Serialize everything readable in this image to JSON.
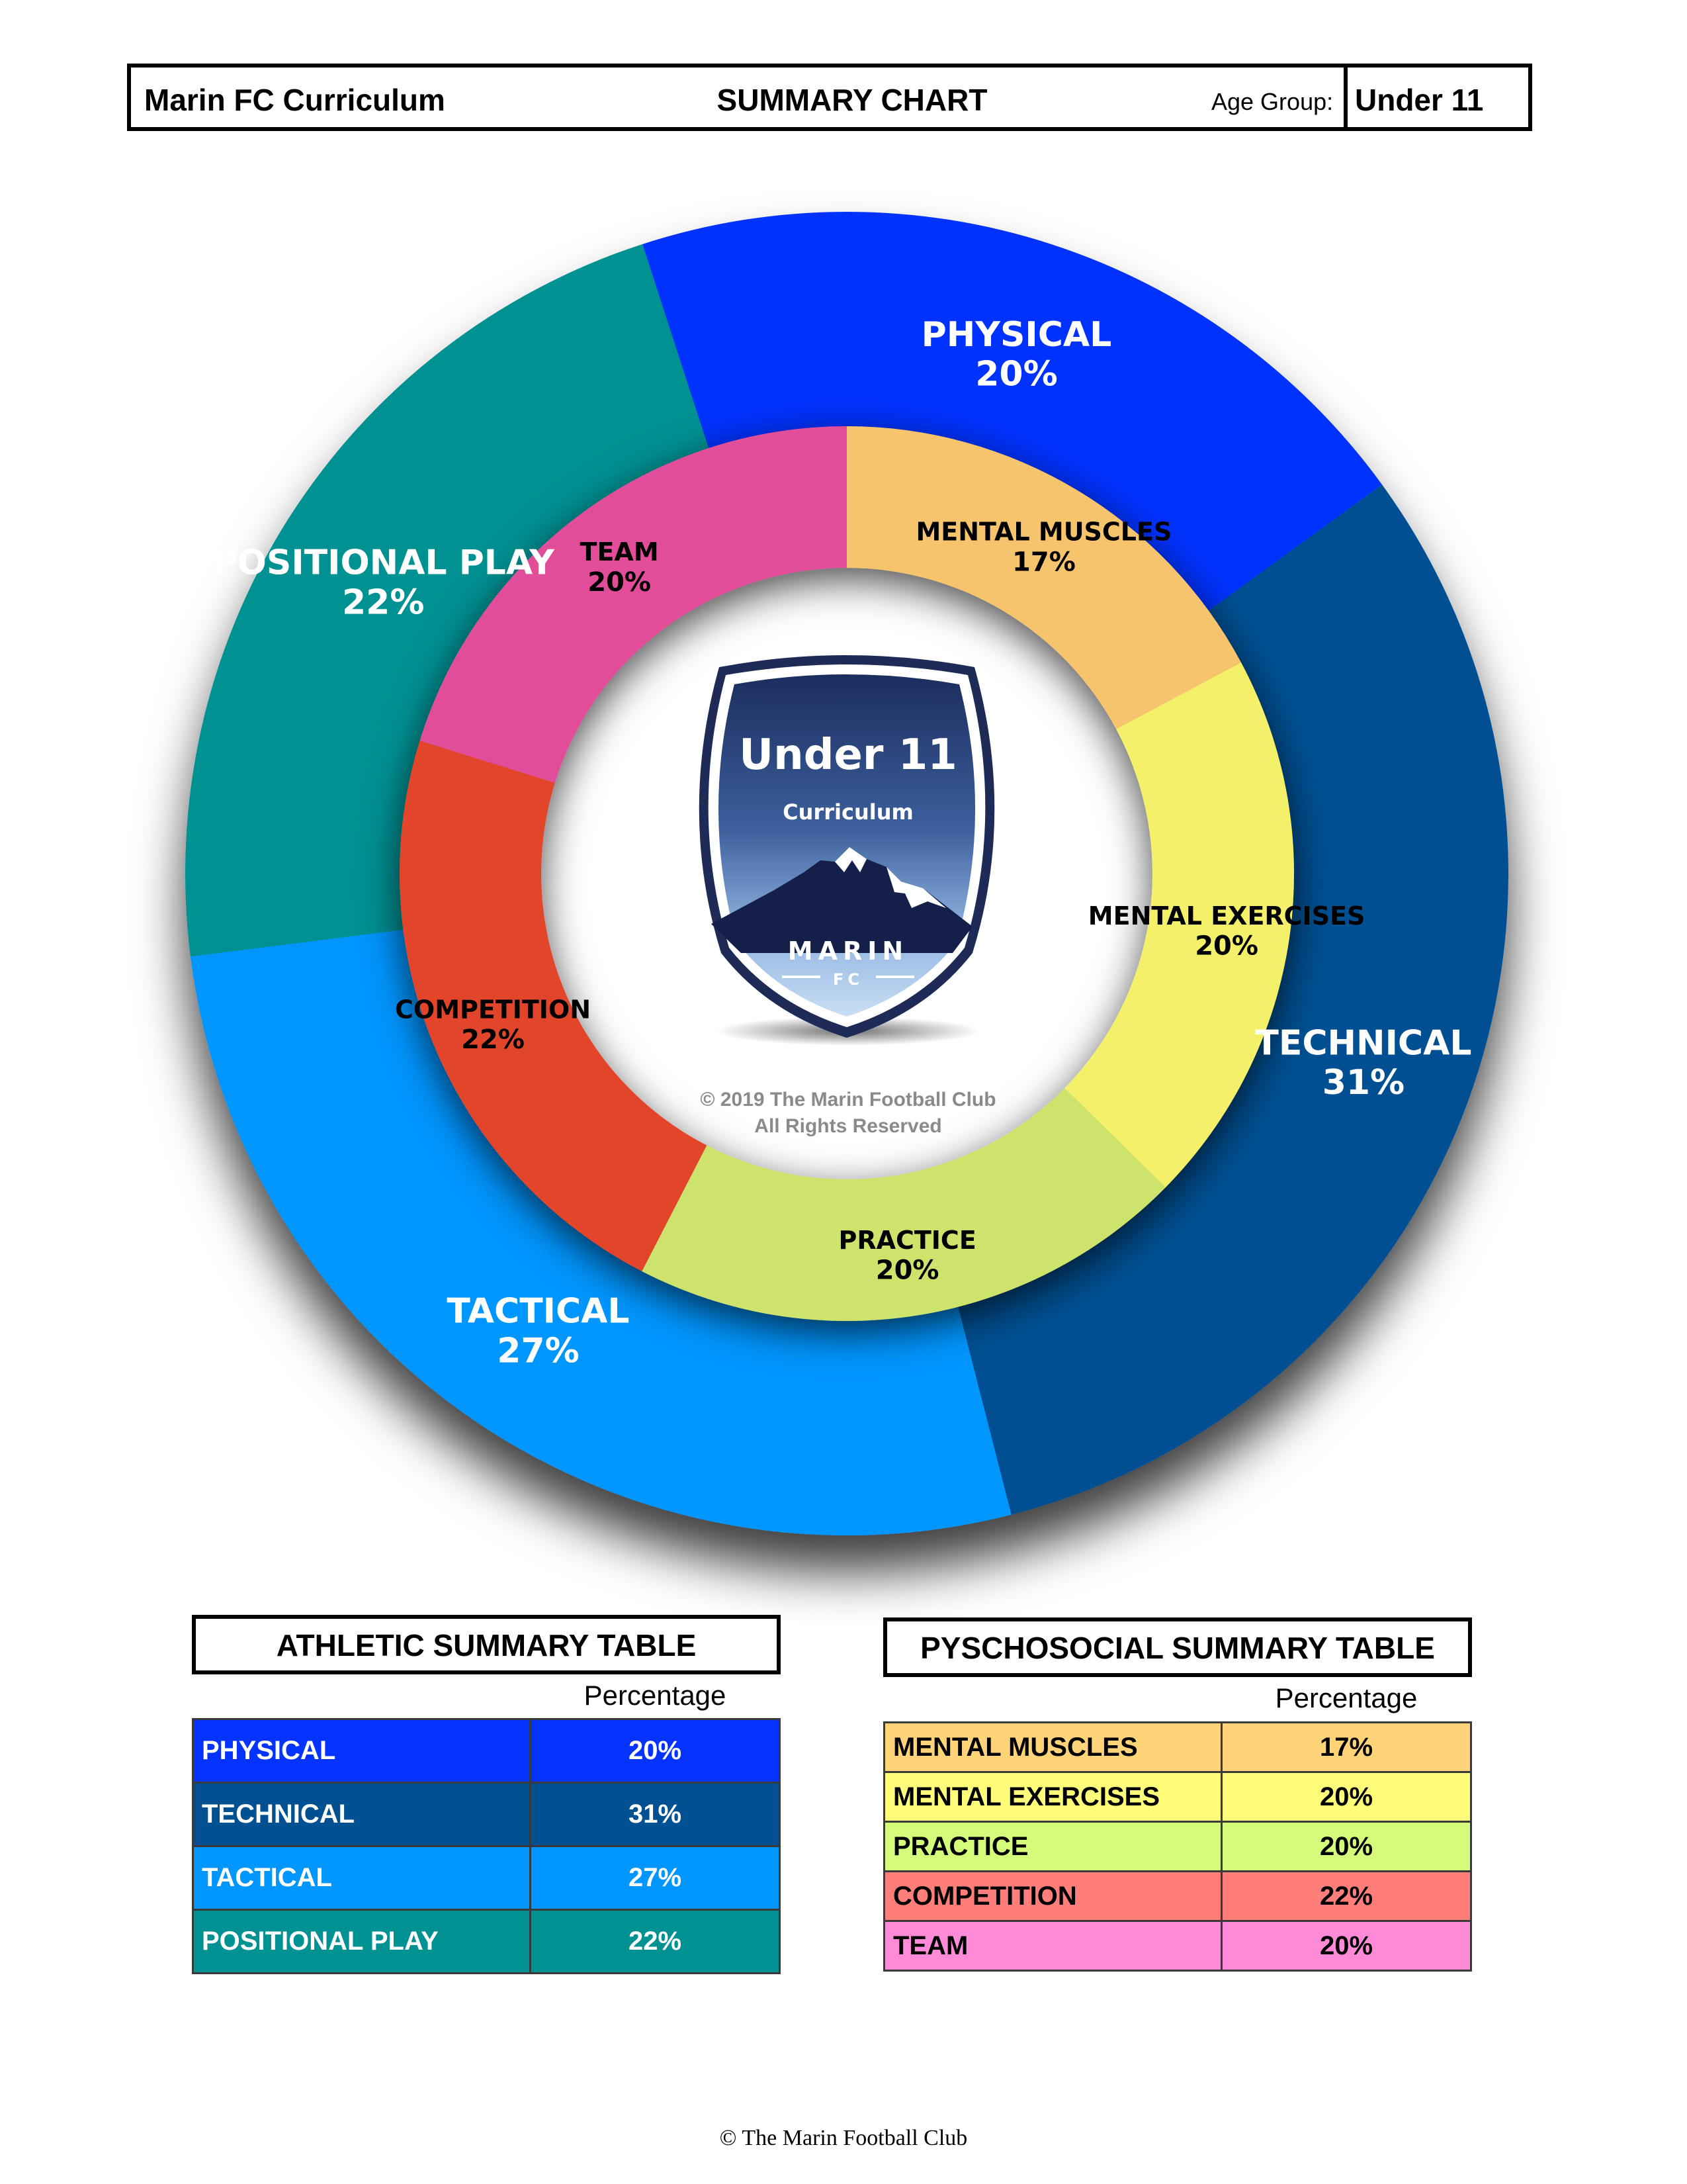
{
  "header": {
    "curriculum": "Marin FC Curriculum",
    "title": "SUMMARY CHART",
    "age_group_label": "Age Group:",
    "age_group_value": "Under 11"
  },
  "chart_data": {
    "type": "pie",
    "outer_ring": {
      "categories": [
        "PHYSICAL",
        "TECHNICAL",
        "TACTICAL",
        "POSITIONAL PLAY"
      ],
      "values": [
        20,
        31,
        27,
        22
      ],
      "labels": [
        "20%",
        "31%",
        "27%",
        "22%"
      ],
      "colors": [
        "#0433ff",
        "#005092",
        "#0096ff",
        "#009193"
      ]
    },
    "inner_ring": {
      "categories": [
        "MENTAL MUSCLES",
        "MENTAL EXERCISES",
        "PRACTICE",
        "COMPETITION",
        "TEAM"
      ],
      "values": [
        17,
        20,
        20,
        22,
        20
      ],
      "labels": [
        "17%",
        "20%",
        "20%",
        "22%",
        "20%"
      ],
      "colors": [
        "#f5c46c",
        "#f4f06a",
        "#cde36c",
        "#e2452b",
        "#e24e9a"
      ]
    }
  },
  "badge": {
    "title": "Under 11",
    "subtitle": "Curriculum",
    "brand": "MARIN",
    "brand_sub": "FC"
  },
  "copyright_line1": "© 2019 The Marin Football Club",
  "copyright_line2": "All Rights Reserved",
  "athletic_table": {
    "title": "ATHLETIC SUMMARY TABLE",
    "percentage_header": "Percentage",
    "rows": [
      {
        "label": "PHYSICAL",
        "value": "20%",
        "color": "#0433ff"
      },
      {
        "label": "TECHNICAL",
        "value": "31%",
        "color": "#005092"
      },
      {
        "label": "TACTICAL",
        "value": "27%",
        "color": "#0096ff"
      },
      {
        "label": "POSITIONAL PLAY",
        "value": "22%",
        "color": "#009193"
      }
    ]
  },
  "psychosocial_table": {
    "title": "PYSCHOSOCIAL SUMMARY TABLE",
    "percentage_header": "Percentage",
    "rows": [
      {
        "label": "MENTAL MUSCLES",
        "value": "17%",
        "color": "#ffd479"
      },
      {
        "label": "MENTAL EXERCISES",
        "value": "20%",
        "color": "#fffc79"
      },
      {
        "label": "PRACTICE",
        "value": "20%",
        "color": "#d4fb79"
      },
      {
        "label": "COMPETITION",
        "value": "22%",
        "color": "#ff7e79"
      },
      {
        "label": "TEAM",
        "value": "20%",
        "color": "#ff8ad8"
      }
    ]
  },
  "footer": "© The Marin Football Club"
}
